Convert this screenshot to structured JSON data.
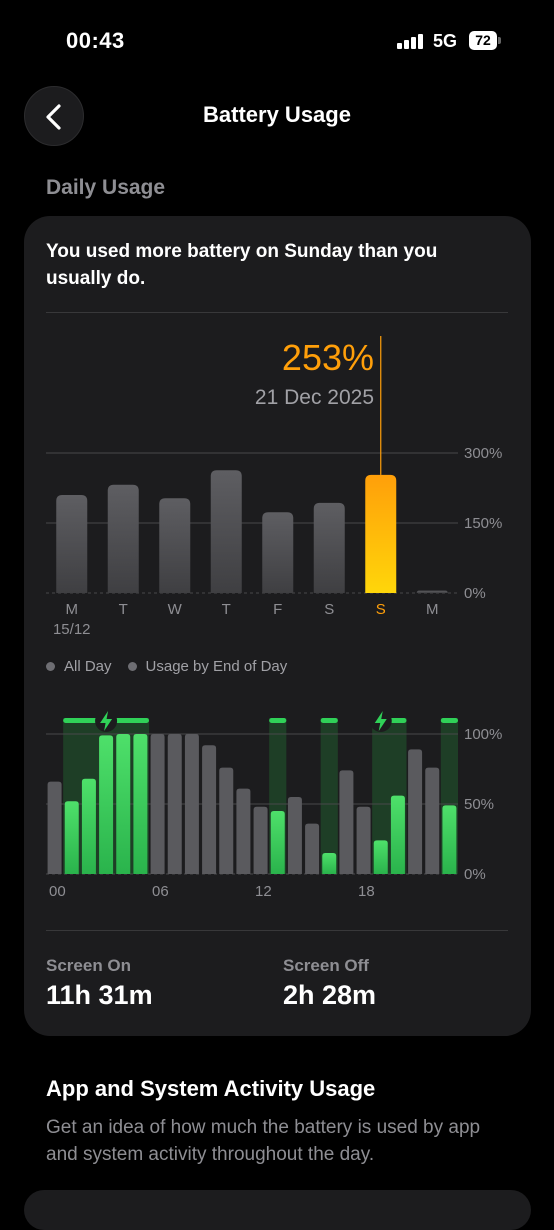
{
  "status_bar": {
    "time": "00:43",
    "network": "5G",
    "battery_level": "72"
  },
  "nav": {
    "title": "Battery Usage",
    "back_icon": "chevron-left-icon"
  },
  "section_header": "Daily Usage",
  "insight": "You used more battery on Sunday than you usually do.",
  "colors": {
    "accent_orange": "#ff9f0a",
    "bar_gray": "#5a5a5e",
    "charging_green": "#30d158",
    "screen_on_green": "#4ee06a",
    "grid": "#48484a"
  },
  "chart_data": [
    {
      "type": "bar",
      "name": "daily",
      "categories": [
        "M",
        "T",
        "W",
        "T",
        "F",
        "S",
        "S",
        "M"
      ],
      "sub_labels": [
        "15/12",
        "",
        "",
        "",
        "",
        "",
        "",
        ""
      ],
      "values": [
        210,
        232,
        203,
        263,
        173,
        193,
        253,
        5
      ],
      "highlight_index": 6,
      "ylim": [
        0,
        300
      ],
      "yticks": [
        "300%",
        "150%",
        "0%"
      ],
      "ytick_values": [
        300,
        150,
        0
      ],
      "selected": {
        "value_label": "253%",
        "date_label": "21 Dec 2025"
      }
    },
    {
      "type": "bar",
      "name": "hourly",
      "legend": [
        "All Day",
        "Usage by End of Day"
      ],
      "x_labels": [
        "00",
        "06",
        "12",
        "18"
      ],
      "x_label_hours": [
        0,
        6,
        12,
        18
      ],
      "ylim": [
        0,
        100
      ],
      "yticks": [
        "100%",
        "50%",
        "0%"
      ],
      "ytick_values": [
        100,
        50,
        0
      ],
      "gray_values": [
        66,
        0,
        0,
        0,
        0,
        0,
        100,
        100,
        100,
        92,
        76,
        61,
        48,
        0,
        55,
        36,
        0,
        74,
        48,
        0,
        0,
        89,
        76,
        0
      ],
      "green_values": [
        0,
        52,
        68,
        99,
        100,
        100,
        0,
        0,
        0,
        0,
        0,
        0,
        0,
        45,
        0,
        0,
        15,
        0,
        0,
        24,
        56,
        0,
        0,
        49
      ],
      "charging_ranges": [
        [
          1,
          5
        ],
        [
          13,
          13
        ],
        [
          16,
          16
        ],
        [
          19,
          20
        ],
        [
          23,
          23
        ]
      ],
      "bolt_hours": [
        3,
        19
      ]
    }
  ],
  "stats": {
    "screen_on": {
      "label": "Screen On",
      "value": "11h 31m"
    },
    "screen_off": {
      "label": "Screen Off",
      "value": "2h 28m"
    }
  },
  "activity": {
    "title": "App and System Activity Usage",
    "description": "Get an idea of how much the battery is used by app and system activity throughout the day."
  }
}
